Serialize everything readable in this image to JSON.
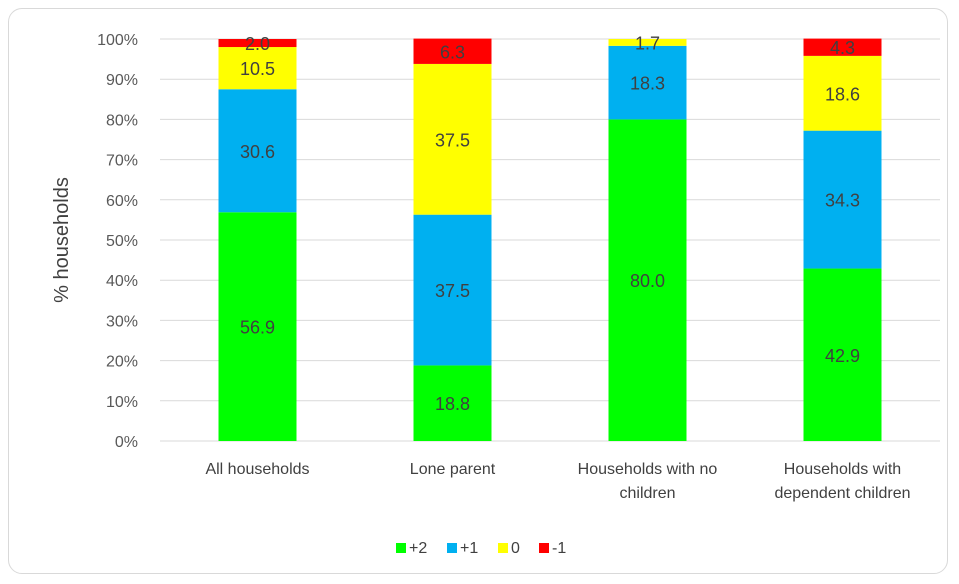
{
  "chart_data": {
    "type": "bar",
    "stacked": true,
    "ylabel": "% households",
    "xlabel": "",
    "ylim": [
      0,
      100
    ],
    "yticks": [
      "0%",
      "10%",
      "20%",
      "30%",
      "40%",
      "50%",
      "60%",
      "70%",
      "80%",
      "90%",
      "100%"
    ],
    "grid": true,
    "legend_position": "bottom",
    "categories": [
      [
        "All  households"
      ],
      [
        "Lone parent"
      ],
      [
        "Households with no",
        "children"
      ],
      [
        "Households with",
        "dependent children"
      ]
    ],
    "series": [
      {
        "name": "+2",
        "color": "#00ff00",
        "values": [
          56.9,
          18.8,
          80.0,
          42.9
        ],
        "labels": [
          "56.9",
          "18.8",
          "80.0",
          "42.9"
        ]
      },
      {
        "name": "+1",
        "color": "#00b0f0",
        "values": [
          30.6,
          37.5,
          18.3,
          34.3
        ],
        "labels": [
          "30.6",
          "37.5",
          "18.3",
          "34.3"
        ]
      },
      {
        "name": "0",
        "color": "#ffff00",
        "values": [
          10.5,
          37.5,
          1.7,
          18.6
        ],
        "labels": [
          "10.5",
          "37.5",
          "1.7",
          "18.6"
        ]
      },
      {
        "name": "-1",
        "color": "#ff0000",
        "values": [
          2.0,
          6.3,
          0.0,
          4.3
        ],
        "labels": [
          "2.0",
          "6.3",
          "",
          "4.3"
        ]
      }
    ]
  }
}
